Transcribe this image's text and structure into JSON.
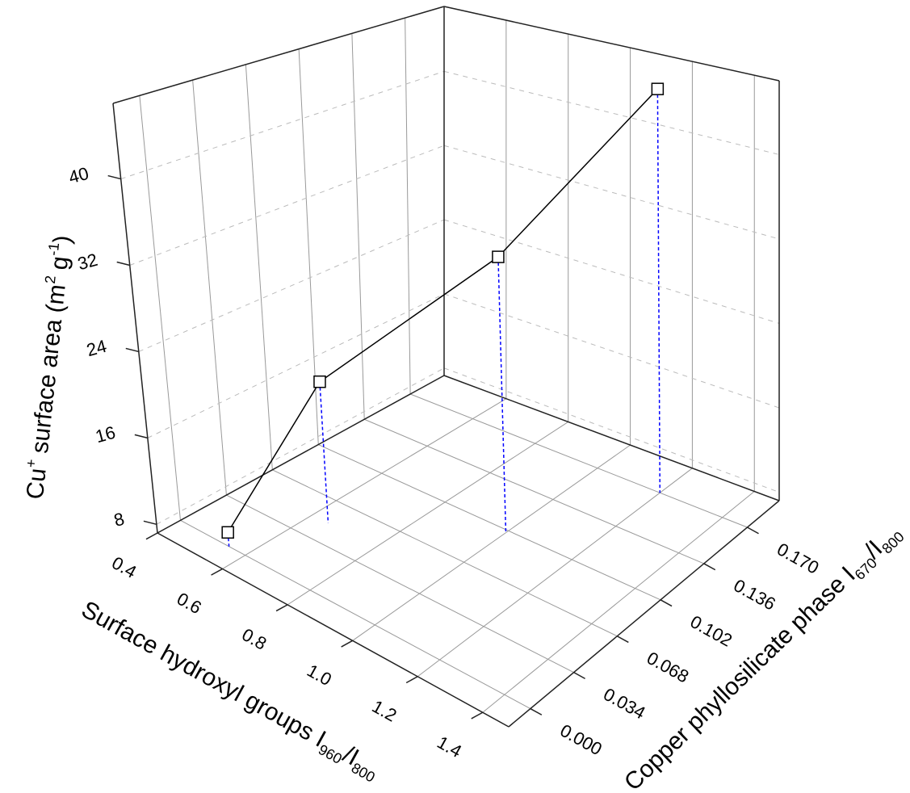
{
  "chart_data": {
    "type": "line3d",
    "xlabel": [
      {
        "text": "Surface hydroxyl groups I"
      },
      {
        "text": "960",
        "shift": "sub"
      },
      {
        "text": "/I"
      },
      {
        "text": "800",
        "shift": "sub"
      }
    ],
    "ylabel": [
      {
        "text": "Copper phyllosilicate phase I"
      },
      {
        "text": "670",
        "shift": "sub"
      },
      {
        "text": "/I"
      },
      {
        "text": "800",
        "shift": "sub"
      }
    ],
    "zlabel": [
      {
        "text": "Cu"
      },
      {
        "text": "+",
        "shift": "super"
      },
      {
        "text": " surface area (m"
      },
      {
        "text": "2",
        "shift": "super"
      },
      {
        "text": " g"
      },
      {
        "text": "-1",
        "shift": "super"
      },
      {
        "text": ")"
      }
    ],
    "x": [
      0.55,
      0.65,
      1.0,
      1.2
    ],
    "y": [
      0.0,
      0.05,
      0.1,
      0.17
    ],
    "z": [
      8.5,
      20.5,
      33,
      46
    ],
    "line_color": "#000000",
    "drop_color": "#0000ff",
    "xlim": [
      0.4,
      1.48
    ],
    "xticks": [
      0.4,
      0.6,
      0.8,
      {
        "value": 1,
        "label": "1.0"
      },
      1.2,
      1.4
    ],
    "ylim": [
      -0.017,
      0.195
    ],
    "yticks": [
      {
        "value": 0,
        "label": "0.000"
      },
      {
        "value": 0.034,
        "label": "0.034"
      },
      {
        "value": 0.068,
        "label": "0.068"
      },
      {
        "value": 0.102,
        "label": "0.102"
      },
      {
        "value": 0.136,
        "label": "0.136"
      },
      {
        "value": 0.17,
        "label": "0.170"
      }
    ],
    "zlim": [
      7.2,
      47
    ],
    "zticks": [
      8,
      16,
      24,
      32,
      40
    ],
    "grid": true
  }
}
